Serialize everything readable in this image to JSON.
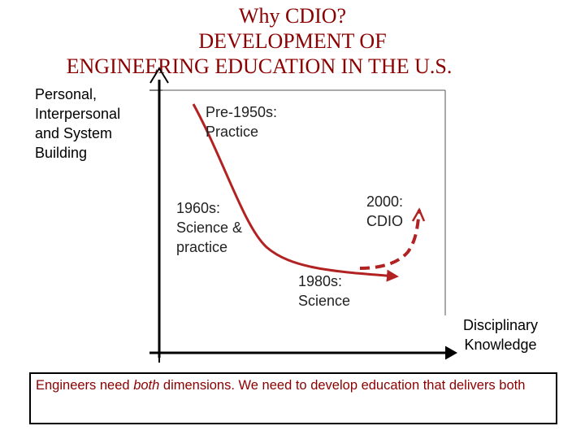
{
  "title": {
    "line1": "Why CDIO?",
    "line2": "DEVELOPMENT OF",
    "line3": "ENGINEERING EDUCATION IN THE U.S."
  },
  "axes": {
    "y_label": [
      "Personal,",
      "Interpersonal",
      "and System",
      "Building"
    ],
    "x_label": [
      "Disciplinary",
      "Knowledge"
    ]
  },
  "milestones": {
    "pre1950": [
      "Pre-1950s:",
      "Practice"
    ],
    "y1960": [
      "1960s:",
      "Science &",
      "practice"
    ],
    "y1980": [
      "1980s:",
      "Science"
    ],
    "y2000": [
      "2000:",
      "CDIO"
    ]
  },
  "footer": {
    "before": "Engineers need ",
    "emph": "both",
    "after": " dimensions. We need to develop education that delivers both"
  },
  "colors": {
    "title": "#8b0000",
    "curve": "#b22222",
    "footer": "#8b0000"
  }
}
